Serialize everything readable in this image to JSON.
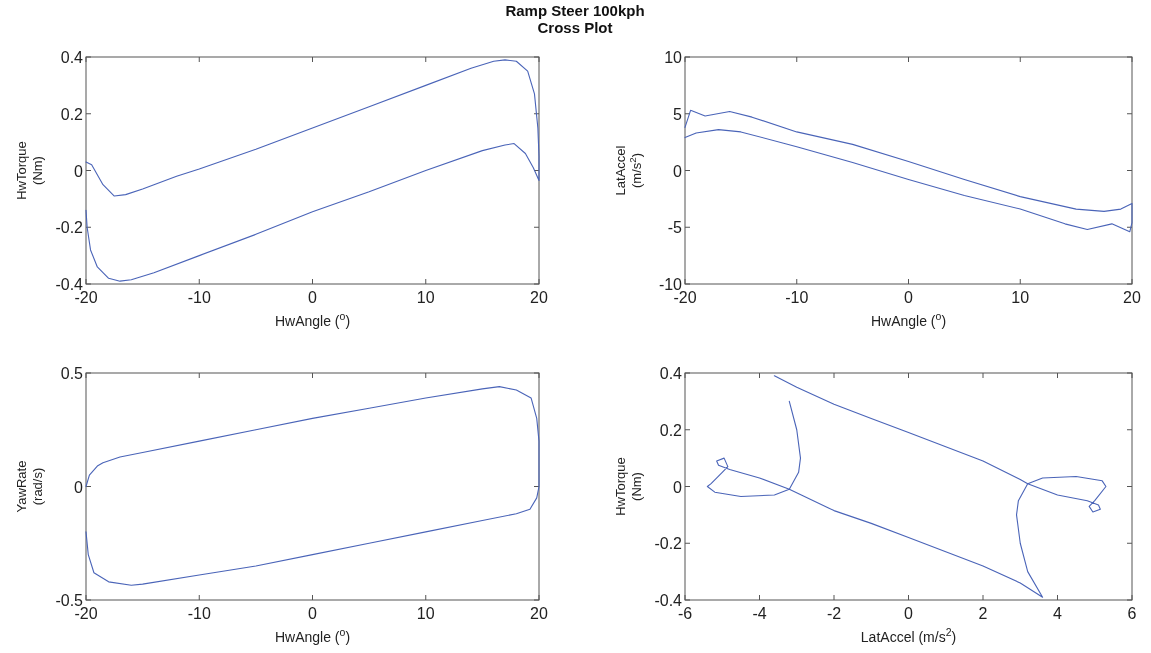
{
  "chart_data": [
    {
      "type": "line",
      "title": "Ramp Steer 100kph",
      "subtitle": "Cross Plot",
      "xlabel": "HwAngle ($^{o}$)",
      "ylabel": "HwTorque (Nm)",
      "xlim": [
        -20,
        20
      ],
      "ylim": [
        -0.4,
        0.4
      ],
      "xticks": [
        -20,
        -10,
        0,
        10,
        20
      ],
      "yticks": [
        -0.4,
        -0.2,
        0,
        0.2,
        0.4
      ],
      "x": [
        -20,
        -19.5,
        -18.5,
        -17.5,
        -16.5,
        -15,
        -12,
        -10,
        -5,
        0,
        5,
        10,
        14,
        16,
        17,
        18,
        19,
        19.6,
        19.9,
        20,
        20,
        19.5,
        18.8,
        17.8,
        17,
        15,
        10,
        5,
        0,
        -5,
        -10,
        -14,
        -16,
        -17,
        -18,
        -19,
        -19.6,
        -19.9,
        -20
      ],
      "series": [
        {
          "color": "#4a64b8",
          "values": [
            0.03,
            0.02,
            -0.05,
            -0.09,
            -0.085,
            -0.065,
            -0.02,
            0.005,
            0.075,
            0.15,
            0.225,
            0.3,
            0.36,
            0.385,
            0.39,
            0.385,
            0.35,
            0.27,
            0.15,
            0.05,
            -0.035,
            0.01,
            0.06,
            0.095,
            0.09,
            0.07,
            0,
            -0.075,
            -0.145,
            -0.225,
            -0.3,
            -0.36,
            -0.385,
            -0.39,
            -0.38,
            -0.34,
            -0.28,
            -0.2,
            -0.14
          ]
        }
      ]
    },
    {
      "type": "line",
      "xlabel": "HwAngle ($^{o}$)",
      "ylabel": "LatAccel (m/s$^{2}$)",
      "xlim": [
        -20,
        20
      ],
      "ylim": [
        -10,
        10
      ],
      "xticks": [
        -20,
        -10,
        0,
        10,
        20
      ],
      "yticks": [
        -10,
        -5,
        0,
        5,
        10
      ],
      "x": [
        -20,
        -19.5,
        -18.2,
        -16,
        -14,
        -10,
        -5,
        0,
        5,
        10,
        15,
        17.5,
        19,
        20,
        20,
        19.8,
        18.2,
        16,
        14,
        10,
        5,
        0,
        -5,
        -10,
        -15,
        -17,
        -19,
        -20
      ],
      "series": [
        {
          "color": "#4a64b8",
          "values": [
            3.8,
            5.3,
            4.8,
            5.2,
            4.7,
            3.4,
            2.3,
            0.8,
            -0.8,
            -2.3,
            -3.4,
            -3.6,
            -3.4,
            -2.9,
            -4.6,
            -5.4,
            -4.7,
            -5.2,
            -4.7,
            -3.4,
            -2.2,
            -0.8,
            0.7,
            2.1,
            3.4,
            3.6,
            3.3,
            2.9
          ]
        }
      ]
    },
    {
      "type": "line",
      "xlabel": "HwAngle ($^{o}$)",
      "ylabel": "YawRate (rad/s)",
      "xlim": [
        -20,
        20
      ],
      "ylim": [
        -0.5,
        0.5
      ],
      "xticks": [
        -20,
        -10,
        0,
        10,
        20
      ],
      "yticks": [
        -0.5,
        0,
        0.5
      ],
      "x": [
        -20,
        -19.7,
        -19,
        -18.5,
        -17,
        -15,
        -10,
        -5,
        0,
        5,
        10,
        15,
        16.5,
        18,
        19.3,
        19.8,
        20,
        20,
        19.8,
        19.2,
        18,
        15,
        10,
        5,
        0,
        -5,
        -10,
        -15,
        -16,
        -18,
        -19.3,
        -19.8,
        -20
      ],
      "series": [
        {
          "color": "#4a64b8",
          "values": [
            0,
            0.05,
            0.09,
            0.105,
            0.13,
            0.15,
            0.2,
            0.25,
            0.3,
            0.345,
            0.39,
            0.43,
            0.44,
            0.425,
            0.39,
            0.3,
            0.2,
            0,
            -0.05,
            -0.1,
            -0.12,
            -0.15,
            -0.2,
            -0.25,
            -0.3,
            -0.35,
            -0.39,
            -0.43,
            -0.435,
            -0.42,
            -0.38,
            -0.3,
            -0.2
          ]
        }
      ]
    },
    {
      "type": "line",
      "xlabel": "LatAccel (m/s$^{2}$)",
      "ylabel": "HwTorque (Nm)",
      "xlim": [
        -6,
        6
      ],
      "ylim": [
        -0.4,
        0.4
      ],
      "xticks": [
        -6,
        -4,
        -2,
        0,
        2,
        4,
        6
      ],
      "yticks": [
        -0.4,
        -0.2,
        0,
        0.2,
        0.4
      ],
      "x": [
        -3.6,
        -3,
        -2,
        -1,
        0,
        1,
        2,
        3,
        3.2,
        4,
        4.8,
        5.1,
        5.15,
        4.95,
        4.85,
        5,
        5.3,
        5.2,
        4.5,
        3.6,
        3.2,
        2.95,
        2.9,
        3,
        3.2,
        3.6,
        3,
        2,
        1,
        0,
        -1,
        -2,
        -3.2,
        -4,
        -4.8,
        -5.1,
        -5.15,
        -4.95,
        -4.85,
        -5,
        -5.3,
        -5.4,
        -5.2,
        -4.5,
        -3.6,
        -3.2,
        -2.95,
        -2.9,
        -3,
        -3.2
      ],
      "series": [
        {
          "color": "#4a64b8",
          "values": [
            0.39,
            0.35,
            0.29,
            0.24,
            0.19,
            0.14,
            0.09,
            0.025,
            0.01,
            -0.03,
            -0.05,
            -0.065,
            -0.08,
            -0.09,
            -0.07,
            -0.05,
            0,
            0.02,
            0.035,
            0.03,
            0.01,
            -0.05,
            -0.1,
            -0.2,
            -0.3,
            -0.39,
            -0.34,
            -0.28,
            -0.23,
            -0.18,
            -0.13,
            -0.085,
            -0.01,
            0.03,
            0.06,
            0.075,
            0.09,
            0.1,
            0.07,
            0.05,
            0.01,
            0,
            -0.02,
            -0.035,
            -0.03,
            -0.01,
            0.05,
            0.1,
            0.2,
            0.3
          ]
        }
      ]
    }
  ]
}
